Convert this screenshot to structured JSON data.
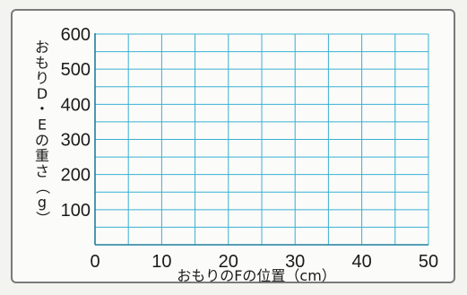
{
  "chart_data": {
    "type": "scatter",
    "xlabel": "おもりのFの位置（cm）",
    "ylabel": "おもりD・Eの重さ（g）",
    "xlim": [
      0,
      50
    ],
    "ylim": [
      0,
      600
    ],
    "x_ticks": [
      "0",
      "10",
      "20",
      "30",
      "40",
      "50"
    ],
    "y_ticks": [
      "100",
      "200",
      "300",
      "400",
      "500",
      "600"
    ],
    "grid": true,
    "minor_grid_x_step": 5,
    "minor_grid_y_step": 50,
    "grid_color": "#39b0d3",
    "axis_color": "#1f7fa0",
    "series": []
  }
}
